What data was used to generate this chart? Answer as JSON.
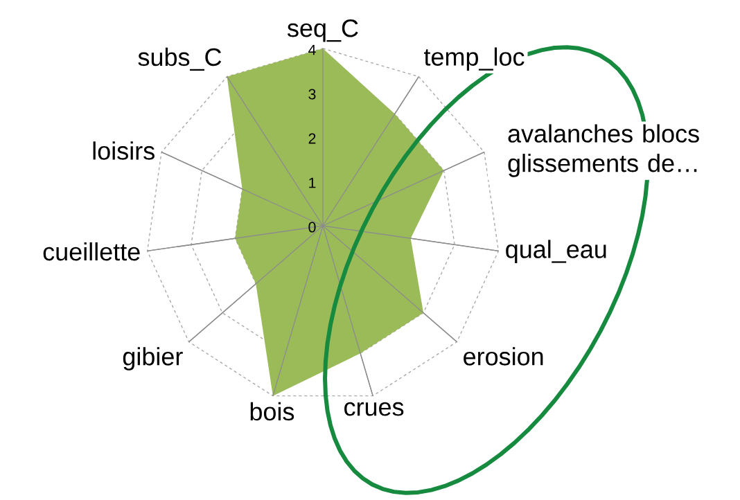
{
  "chart_data": {
    "type": "radar",
    "categories": [
      "seq_C",
      "temp_loc",
      "avalanches blocs glissements de…",
      "qual_eau",
      "erosion",
      "crues",
      "bois",
      "gibier",
      "cueillette",
      "loisirs",
      "subs_C"
    ],
    "series": [
      {
        "color": "#9bbb59",
        "values": [
          4,
          3,
          3,
          2,
          3,
          3,
          4,
          2,
          2,
          2,
          4
        ]
      }
    ],
    "ylim": [
      0,
      4
    ],
    "yticks": [
      0,
      1,
      2,
      3,
      4
    ],
    "grid": true
  }
}
